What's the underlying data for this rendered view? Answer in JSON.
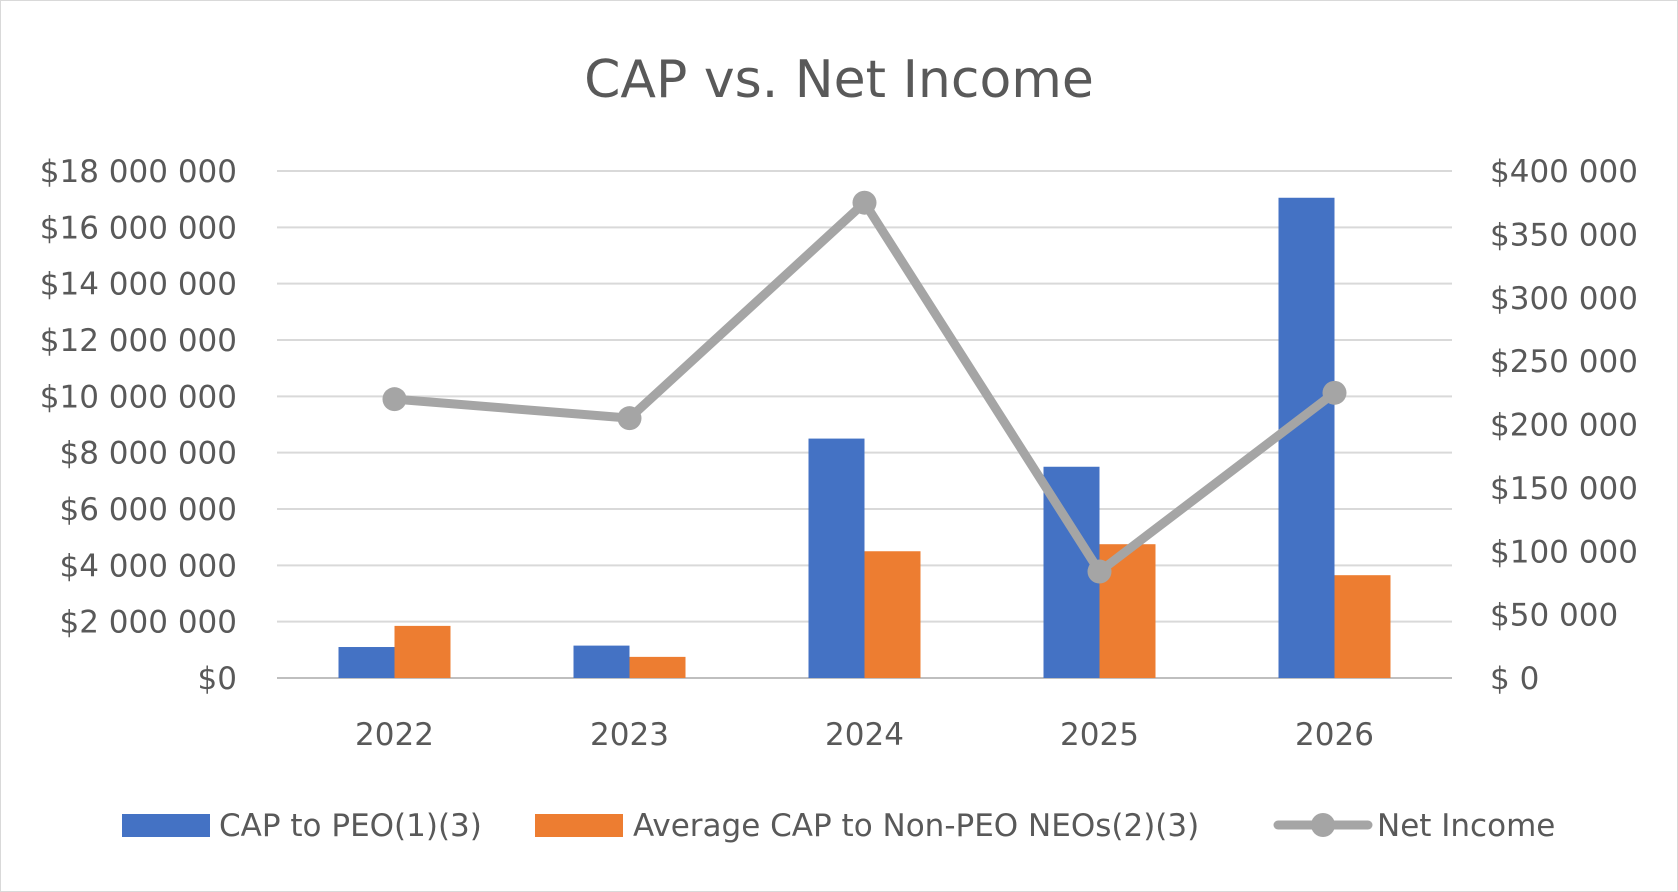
{
  "chart_data": {
    "type": "bar",
    "title": "CAP vs. Net Income",
    "categories": [
      "2022",
      "2023",
      "2024",
      "2025",
      "2026"
    ],
    "y_left": {
      "lim": [
        0,
        18000000
      ],
      "ticks": [
        0,
        2000000,
        4000000,
        6000000,
        8000000,
        10000000,
        12000000,
        14000000,
        16000000,
        18000000
      ],
      "tick_labels": [
        "$0",
        "$2 000 000",
        "$4 000 000",
        "$6 000 000",
        "$8 000 000",
        "$10 000 000",
        "$12 000 000",
        "$14 000 000",
        "$16 000 000",
        "$18 000 000"
      ]
    },
    "y_right": {
      "lim": [
        0,
        400000
      ],
      "ticks": [
        0,
        50000,
        100000,
        150000,
        200000,
        250000,
        300000,
        350000,
        400000
      ],
      "tick_labels": [
        "$ 0",
        "$50 000",
        "$100 000",
        "$150 000",
        "$200 000",
        "$250 000",
        "$300 000",
        "$350 000",
        "$400 000"
      ]
    },
    "series": [
      {
        "name": "CAP to PEO(1)(3)",
        "type": "bar",
        "axis": "left",
        "color": "#4472c4",
        "values": [
          1100000,
          1150000,
          8500000,
          7500000,
          17050000
        ]
      },
      {
        "name": "Average CAP to Non-PEO NEOs(2)(3)",
        "type": "bar",
        "axis": "left",
        "color": "#ed7d31",
        "values": [
          1850000,
          750000,
          4500000,
          4750000,
          3650000
        ]
      },
      {
        "name": "Net Income",
        "type": "line",
        "axis": "right",
        "color": "#a5a5a5",
        "values": [
          220000,
          205000,
          375000,
          84000,
          225000
        ]
      }
    ],
    "grid": true,
    "legend_position": "bottom"
  }
}
